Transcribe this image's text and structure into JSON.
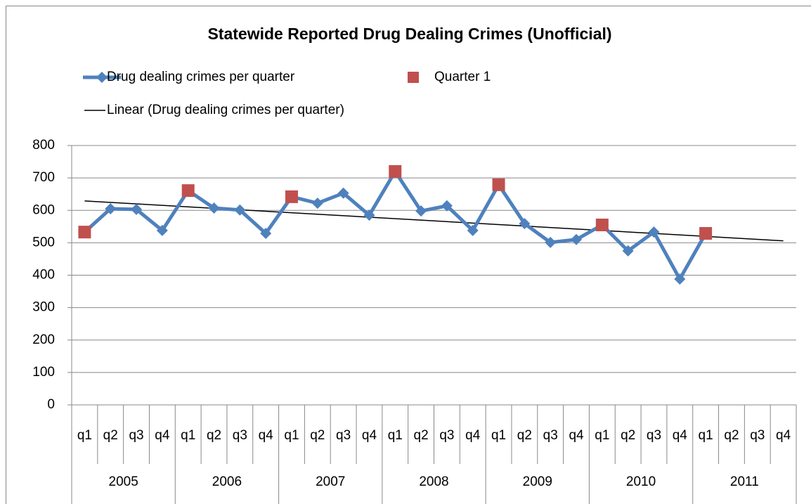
{
  "chart_data": {
    "type": "line",
    "title": "Statewide Reported Drug Dealing Crimes (Unofficial)",
    "categories": [
      "q1",
      "q2",
      "q3",
      "q4",
      "q1",
      "q2",
      "q3",
      "q4",
      "q1",
      "q2",
      "q3",
      "q4",
      "q1",
      "q2",
      "q3",
      "q4",
      "q1",
      "q2",
      "q3",
      "q4",
      "q1",
      "q2",
      "q3",
      "q4",
      "q1",
      "q2",
      "q3",
      "q4"
    ],
    "groups": [
      "2005",
      "2006",
      "2007",
      "2008",
      "2009",
      "2010",
      "2011"
    ],
    "series": [
      {
        "name": "Drug dealing crimes per quarter",
        "color": "#4f81bd",
        "marker": "diamond",
        "values": [
          533,
          605,
          603,
          538,
          661,
          607,
          601,
          529,
          642,
          622,
          653,
          585,
          720,
          598,
          614,
          538,
          679,
          559,
          501,
          510,
          555,
          475,
          533,
          388,
          529,
          null,
          null,
          null
        ]
      },
      {
        "name": "Quarter 1",
        "color": "#c0504d",
        "marker": "square",
        "values": [
          533,
          null,
          null,
          null,
          661,
          null,
          null,
          null,
          642,
          null,
          null,
          null,
          720,
          null,
          null,
          null,
          679,
          null,
          null,
          null,
          555,
          null,
          null,
          null,
          529,
          null,
          null,
          null
        ]
      }
    ],
    "trendline": {
      "name": "Linear (Drug dealing crimes per quarter)",
      "color": "#000000",
      "values": [
        629,
        506
      ]
    },
    "ylim": [
      0,
      800
    ],
    "yticks": [
      0,
      100,
      200,
      300,
      400,
      500,
      600,
      700,
      800
    ],
    "grid": true
  }
}
